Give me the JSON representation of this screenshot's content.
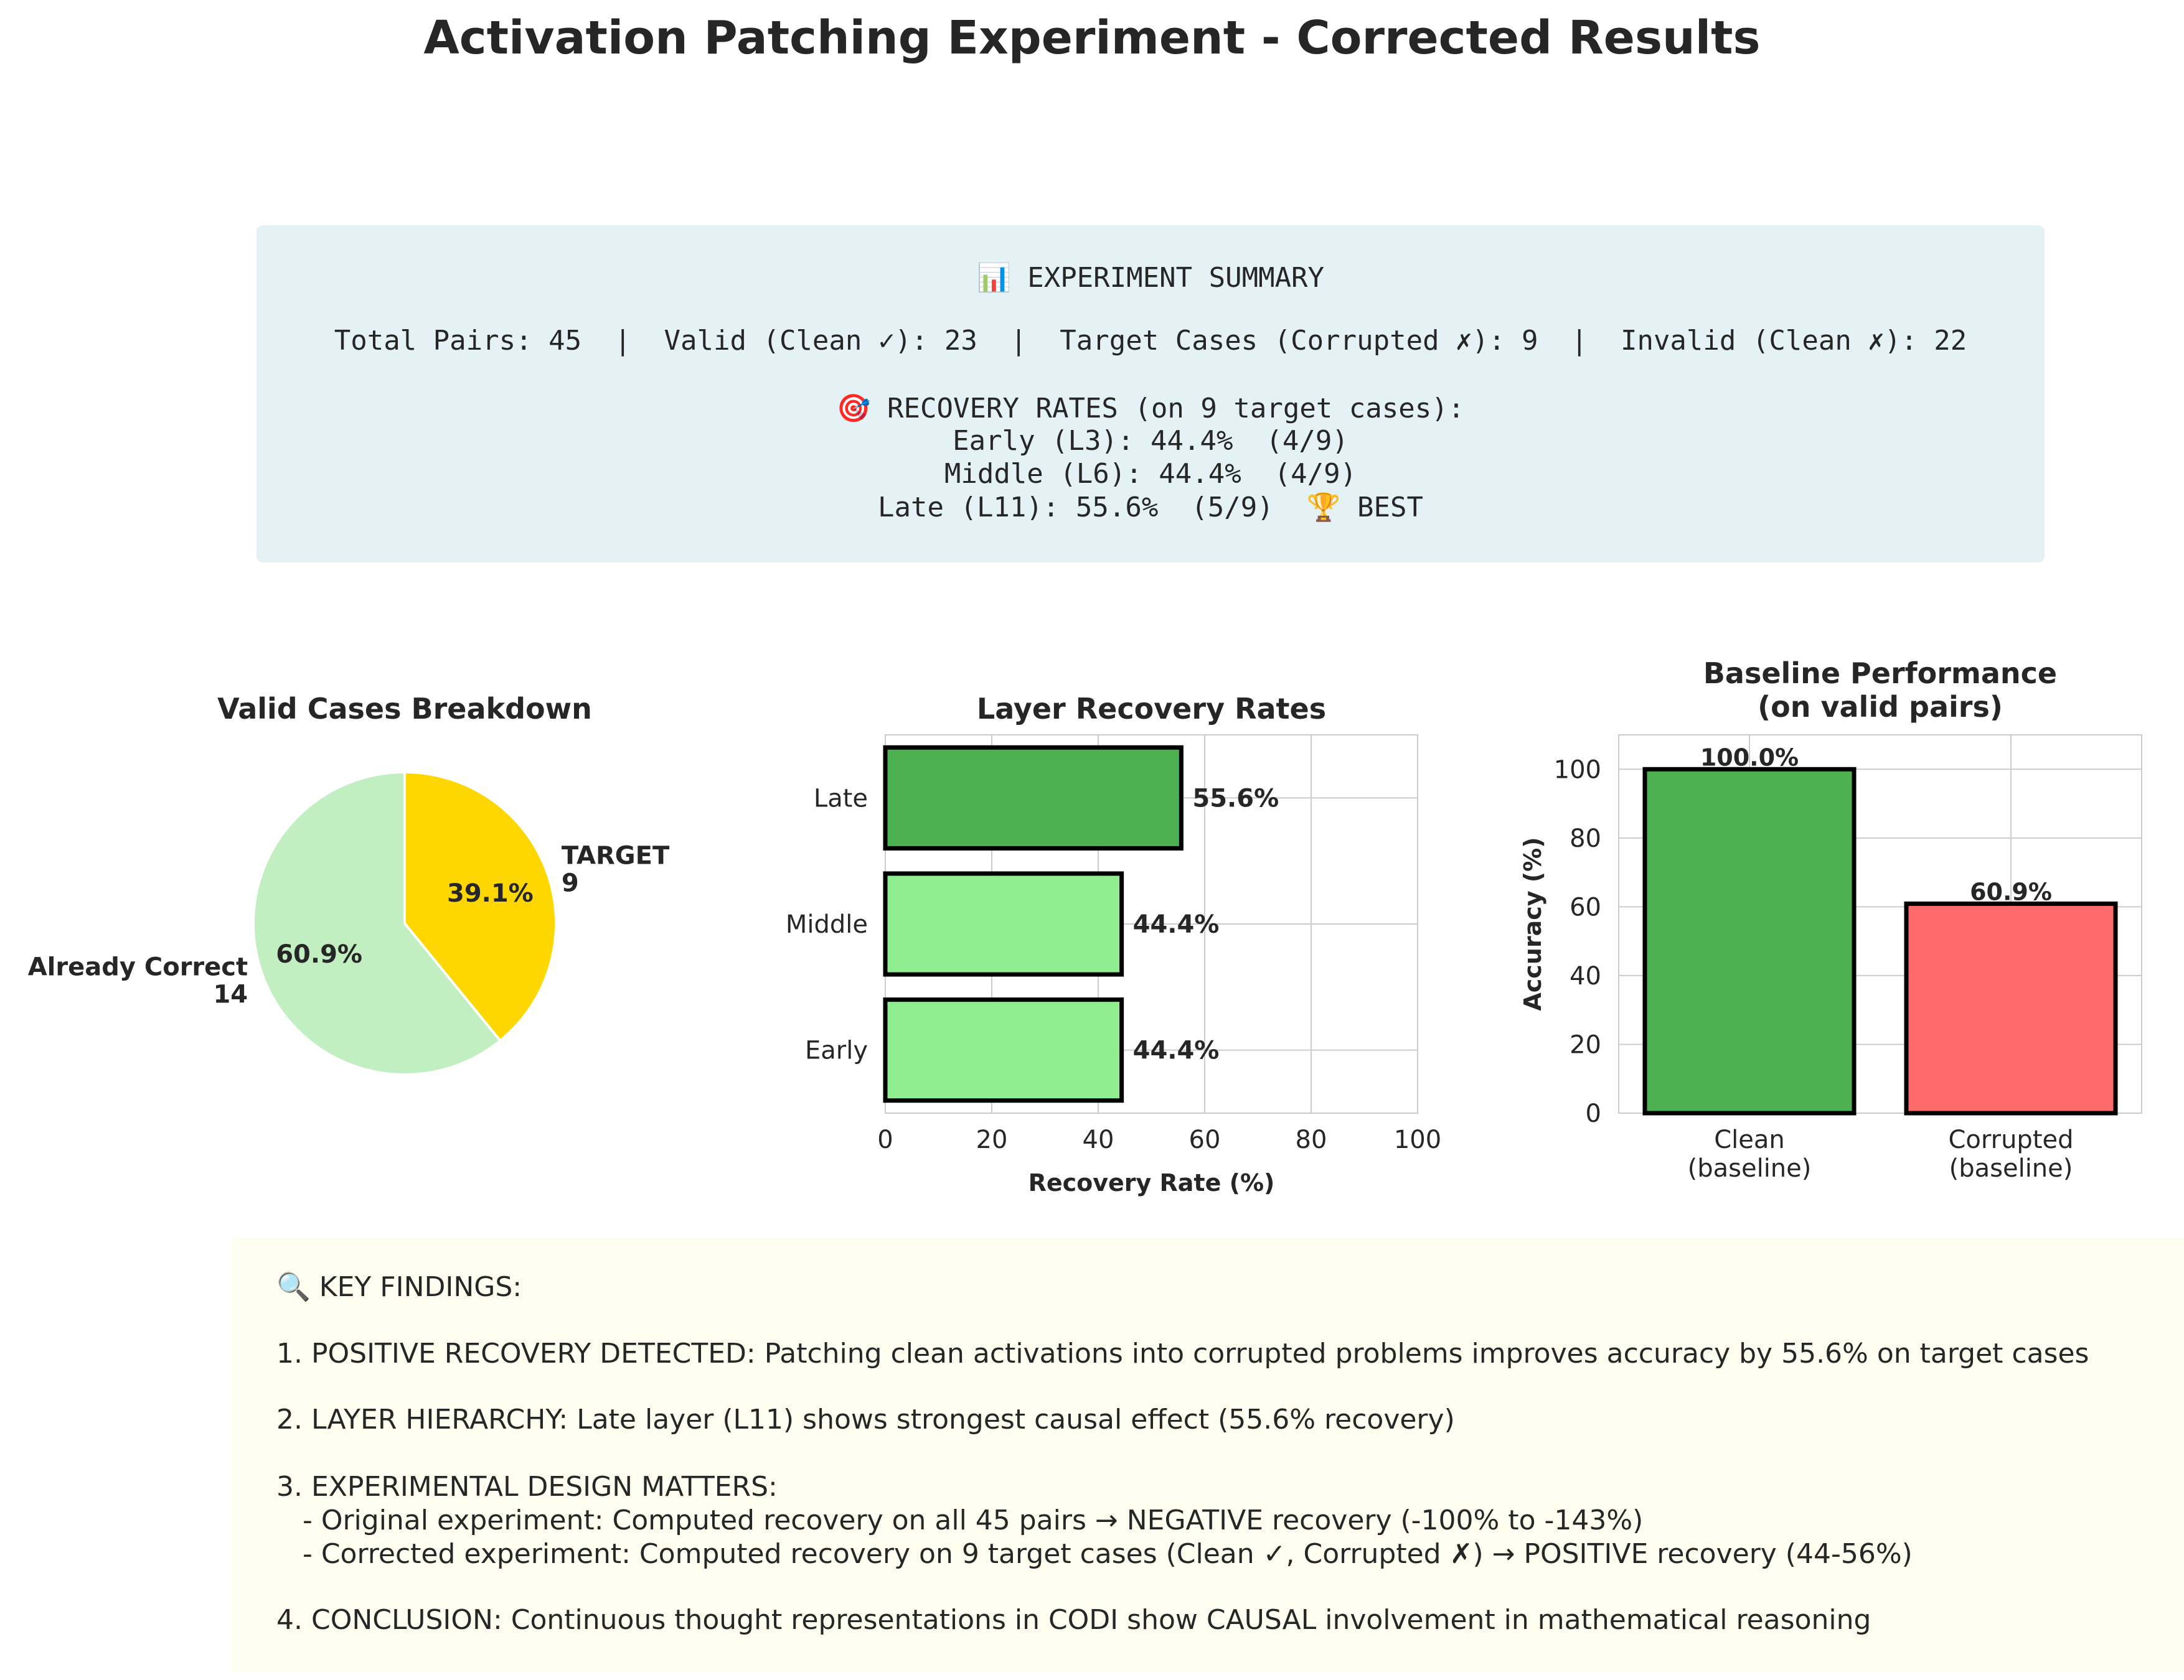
{
  "title": "Activation Patching Experiment - Corrected Results",
  "summary": {
    "heading": "📊 EXPERIMENT SUMMARY",
    "counts_line": "Total Pairs: 45  |  Valid (Clean ✓): 23  |  Target Cases (Corrupted ✗): 9  |  Invalid (Clean ✗): 22",
    "recovery_heading": "🎯 RECOVERY RATES (on 9 target cases):",
    "early_line": "Early (L3): 44.4%  (4/9)",
    "middle_line": "Middle (L6): 44.4%  (4/9)",
    "late_line": "Late (L11): 55.6%  (5/9)  🏆 BEST"
  },
  "findings": {
    "heading": "🔍 KEY FINDINGS:",
    "item1": "1. POSITIVE RECOVERY DETECTED: Patching clean activations into corrupted problems improves accuracy by 55.6% on target cases",
    "item2": "2. LAYER HIERARCHY: Late layer (L11) shows strongest causal effect (55.6% recovery)",
    "item3": "3. EXPERIMENTAL DESIGN MATTERS:",
    "item3a": "   - Original experiment: Computed recovery on all 45 pairs → NEGATIVE recovery (-100% to -143%)",
    "item3b": "   - Corrected experiment: Computed recovery on 9 target cases (Clean ✓, Corrupted ✗) → POSITIVE recovery (44-56%)",
    "item4": "4. CONCLUSION: Continuous thought representations in CODI show CAUSAL involvement in mathematical reasoning"
  },
  "chart_data": [
    {
      "type": "pie",
      "title": "Valid Cases Breakdown",
      "slices": [
        {
          "label": "TARGET\n9",
          "value": 9,
          "pct_label": "39.1%",
          "color": "#ffd700"
        },
        {
          "label": "Already Correct\n14",
          "value": 14,
          "pct_label": "60.9%",
          "color": "#c1efc1"
        }
      ]
    },
    {
      "type": "bar",
      "orientation": "horizontal",
      "title": "Layer Recovery Rates",
      "xlabel": "Recovery Rate (%)",
      "ylabel": "",
      "categories": [
        "Early",
        "Middle",
        "Late"
      ],
      "values": [
        44.4,
        44.4,
        55.6
      ],
      "value_labels": [
        "44.4%",
        "44.4%",
        "55.6%"
      ],
      "colors": [
        "#90ee90",
        "#90ee90",
        "#4caf50"
      ],
      "xlim": [
        0,
        100
      ],
      "xticks": [
        0,
        20,
        40,
        60,
        80,
        100
      ],
      "grid": true
    },
    {
      "type": "bar",
      "title": "Baseline Performance\n(on valid pairs)",
      "xlabel": "",
      "ylabel": "Accuracy (%)",
      "categories": [
        "Clean\n(baseline)",
        "Corrupted\n(baseline)"
      ],
      "values": [
        100.0,
        60.9
      ],
      "value_labels": [
        "100.0%",
        "60.9%"
      ],
      "colors": [
        "#4caf50",
        "#ff6b6b"
      ],
      "ylim": [
        0,
        110
      ],
      "yticks": [
        0,
        20,
        40,
        60,
        80,
        100
      ],
      "grid": true
    }
  ]
}
